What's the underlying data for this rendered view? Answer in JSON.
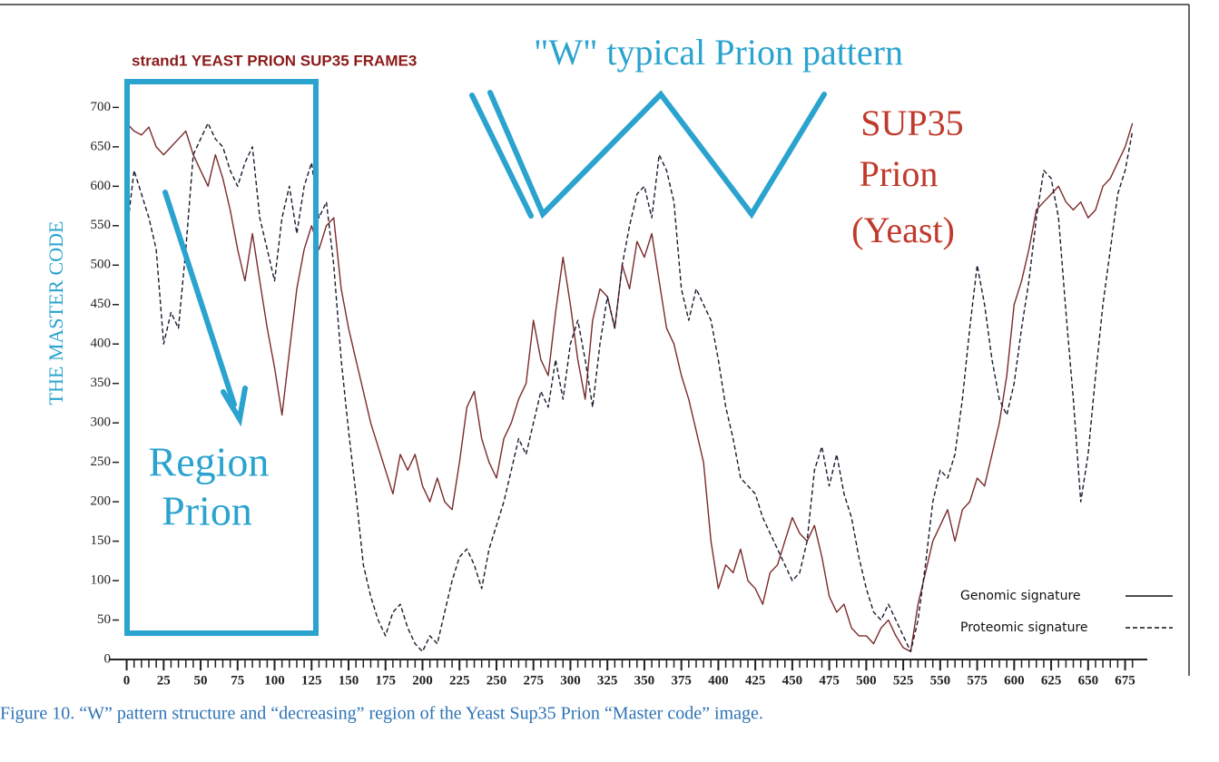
{
  "chart_data": {
    "type": "line",
    "title": "strand1 YEAST PRION SUP35 FRAME3",
    "subtitle": "\"W\" typical Prion pattern",
    "y_label": "THE MASTER CODE",
    "annotations": [
      "SUP35",
      "Prion",
      "(Yeast)",
      "Region",
      "Prion"
    ],
    "x": [
      0,
      5,
      10,
      15,
      20,
      25,
      30,
      35,
      40,
      45,
      50,
      55,
      60,
      65,
      70,
      75,
      80,
      85,
      90,
      95,
      100,
      105,
      110,
      115,
      120,
      125,
      130,
      135,
      140,
      145,
      150,
      155,
      160,
      165,
      170,
      175,
      180,
      185,
      190,
      195,
      200,
      205,
      210,
      215,
      220,
      225,
      230,
      235,
      240,
      245,
      250,
      255,
      260,
      265,
      270,
      275,
      280,
      285,
      290,
      295,
      300,
      305,
      310,
      315,
      320,
      325,
      330,
      335,
      340,
      345,
      350,
      355,
      360,
      365,
      370,
      375,
      380,
      385,
      390,
      395,
      400,
      405,
      410,
      415,
      420,
      425,
      430,
      435,
      440,
      445,
      450,
      455,
      460,
      465,
      470,
      475,
      480,
      485,
      490,
      495,
      500,
      505,
      510,
      515,
      520,
      525,
      530,
      535,
      540,
      545,
      550,
      555,
      560,
      565,
      570,
      575,
      580,
      585,
      590,
      595,
      600,
      605,
      610,
      615,
      620,
      625,
      630,
      635,
      640,
      645,
      650,
      655,
      660,
      665,
      670,
      675,
      680
    ],
    "series": [
      {
        "name": "Genomic signature",
        "color": "#7b2a2a",
        "dashed": false,
        "values": [
          680,
          670,
          665,
          675,
          650,
          640,
          650,
          660,
          670,
          640,
          620,
          600,
          640,
          610,
          570,
          520,
          480,
          540,
          480,
          420,
          370,
          310,
          390,
          470,
          520,
          550,
          520,
          550,
          560,
          470,
          420,
          380,
          340,
          300,
          270,
          240,
          210,
          260,
          240,
          260,
          220,
          200,
          230,
          200,
          190,
          250,
          320,
          340,
          280,
          250,
          230,
          280,
          300,
          330,
          350,
          430,
          380,
          360,
          440,
          510,
          450,
          380,
          330,
          430,
          470,
          460,
          420,
          500,
          470,
          530,
          510,
          540,
          480,
          420,
          400,
          360,
          330,
          290,
          250,
          150,
          90,
          120,
          110,
          140,
          100,
          90,
          70,
          110,
          120,
          150,
          180,
          160,
          150,
          170,
          130,
          80,
          60,
          70,
          40,
          30,
          30,
          20,
          40,
          50,
          30,
          15,
          10,
          70,
          110,
          150,
          170,
          190,
          150,
          190,
          200,
          230,
          220,
          260,
          300,
          360,
          450,
          480,
          520,
          570,
          580,
          590,
          600,
          580,
          570,
          580,
          560,
          570,
          600,
          610,
          630,
          650,
          680
        ]
      },
      {
        "name": "Proteomic signature",
        "color": "#1a1a2e",
        "dashed": true,
        "values": [
          540,
          620,
          590,
          560,
          520,
          400,
          440,
          420,
          520,
          640,
          660,
          680,
          660,
          650,
          620,
          600,
          630,
          650,
          560,
          520,
          480,
          560,
          600,
          540,
          600,
          630,
          560,
          580,
          500,
          380,
          290,
          210,
          120,
          80,
          50,
          30,
          60,
          70,
          40,
          20,
          10,
          30,
          20,
          60,
          100,
          130,
          140,
          120,
          90,
          140,
          170,
          200,
          240,
          280,
          260,
          300,
          340,
          320,
          380,
          330,
          400,
          430,
          380,
          320,
          400,
          460,
          420,
          500,
          550,
          590,
          600,
          560,
          640,
          620,
          580,
          470,
          430,
          470,
          450,
          430,
          380,
          320,
          280,
          230,
          220,
          210,
          180,
          160,
          140,
          120,
          100,
          110,
          150,
          240,
          270,
          220,
          260,
          210,
          180,
          130,
          90,
          60,
          50,
          70,
          50,
          30,
          10,
          50,
          120,
          200,
          240,
          230,
          260,
          330,
          420,
          500,
          450,
          380,
          330,
          310,
          350,
          420,
          480,
          560,
          620,
          610,
          560,
          440,
          330,
          200,
          260,
          360,
          450,
          520,
          590,
          620,
          670
        ]
      }
    ],
    "xlim": [
      -12,
      690
    ],
    "xticks": [
      0,
      25,
      50,
      75,
      100,
      125,
      150,
      175,
      200,
      225,
      250,
      275,
      300,
      325,
      350,
      375,
      400,
      425,
      450,
      475,
      500,
      525,
      550,
      575,
      600,
      625,
      650,
      675
    ],
    "ylim": [
      0,
      720
    ],
    "yticks": [
      0,
      50,
      100,
      150,
      200,
      250,
      300,
      350,
      400,
      450,
      500,
      550,
      600,
      650,
      700
    ],
    "legend": "lower right"
  },
  "caption": "Figure 10. “W” pattern structure and “decreasing” region of the Yeast Sup35 Prion “Master code” image."
}
